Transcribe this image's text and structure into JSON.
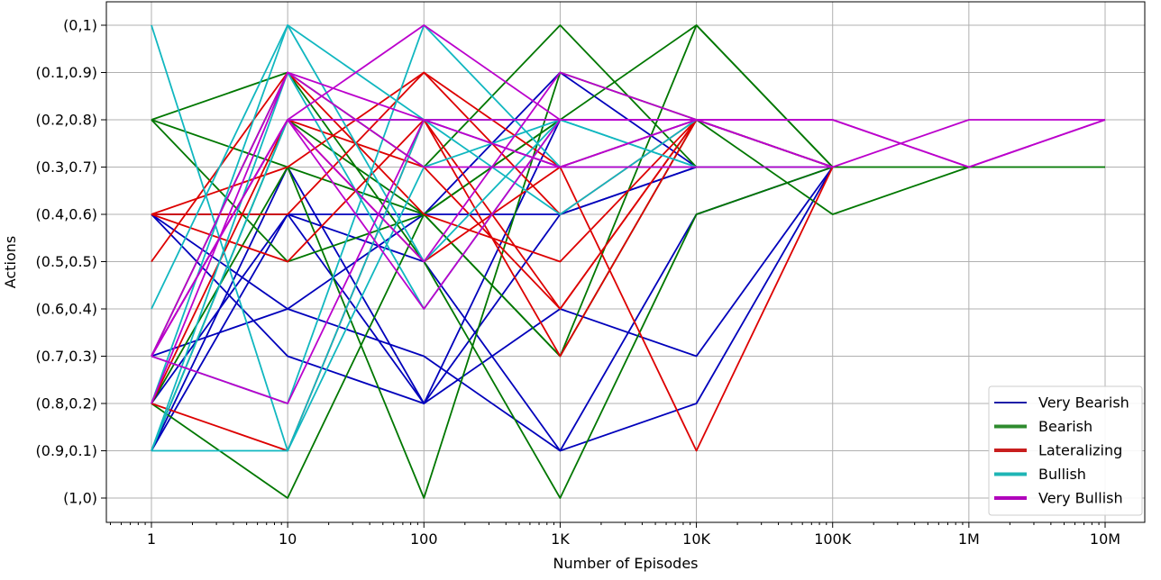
{
  "chart_data": {
    "type": "line",
    "xlabel": "Number of Episodes",
    "ylabel": "Actions",
    "x_scale": "log",
    "x": [
      1,
      10,
      100,
      1000,
      10000,
      100000,
      1000000,
      10000000
    ],
    "x_tick_labels": [
      "1",
      "10",
      "100",
      "1K",
      "10K",
      "100K",
      "1M",
      "10M"
    ],
    "y_tick_labels": [
      "(0,1)",
      "(0.1,0.9)",
      "(0.2,0.8)",
      "(0.3,0.7)",
      "(0.4,0.6)",
      "(0.5,0.5)",
      "(0.6,0.4)",
      "(0.7,0.3)",
      "(0.8,0.2)",
      "(0.9,0.1)",
      "(1,0)"
    ],
    "y_note": "y values are the index into y_tick_labels (0 = (0,1) at top, 10 = (1,0) at bottom)",
    "grid": true,
    "legend_position": "bottom-right",
    "series": [
      {
        "name": "Very Bearish",
        "color": "#0000bb",
        "legend_color": "#1f1fa8",
        "runs": [
          [
            4,
            4,
            4,
            4,
            3
          ],
          [
            4,
            6,
            7,
            9,
            8,
            3
          ],
          [
            7,
            6,
            4,
            1,
            3,
            3
          ],
          [
            9,
            3,
            8,
            4,
            3
          ],
          [
            4,
            7,
            8,
            6,
            7,
            3
          ],
          [
            9,
            4,
            5,
            9,
            4,
            3
          ],
          [
            8,
            4,
            8,
            2,
            2,
            2
          ]
        ]
      },
      {
        "name": "Bearish",
        "color": "#007700",
        "legend_color": "#2e8b2e",
        "runs": [
          [
            2,
            1,
            3,
            0,
            3,
            3,
            3,
            3
          ],
          [
            2,
            3,
            4,
            7,
            2,
            4,
            3
          ],
          [
            7,
            1,
            5,
            10,
            4,
            3
          ],
          [
            8,
            10,
            4,
            2,
            0,
            3
          ],
          [
            9,
            2,
            4,
            7,
            0,
            3
          ],
          [
            2,
            5,
            4,
            2,
            2,
            3
          ],
          [
            8,
            3,
            10,
            1,
            2,
            3
          ]
        ]
      },
      {
        "name": "Lateralizing",
        "color": "#dd0000",
        "legend_color": "#c81e1e",
        "runs": [
          [
            4,
            3,
            1,
            4,
            2,
            3
          ],
          [
            5,
            1,
            4,
            5,
            2,
            2
          ],
          [
            8,
            9,
            2,
            6,
            2,
            3
          ],
          [
            4,
            4,
            1,
            3,
            9,
            3
          ],
          [
            8,
            2,
            3,
            6,
            2,
            2
          ],
          [
            4,
            5,
            2,
            7,
            2,
            3
          ],
          [
            7,
            2,
            5,
            3,
            2,
            2
          ]
        ]
      },
      {
        "name": "Bullish",
        "color": "#11b7c0",
        "legend_color": "#1fb5b5",
        "runs": [
          [
            0,
            9,
            3,
            2,
            3,
            3
          ],
          [
            6,
            0,
            2,
            4,
            2,
            3
          ],
          [
            9,
            9,
            2,
            3,
            3,
            3
          ],
          [
            8,
            0,
            5,
            2,
            2,
            2
          ],
          [
            9,
            1,
            6,
            2,
            3
          ],
          [
            7,
            8,
            0,
            3,
            2,
            2
          ],
          [
            9,
            2,
            2,
            2,
            2,
            2
          ]
        ]
      },
      {
        "name": "Very Bullish",
        "color": "#bb00cc",
        "legend_color": "#b000bb",
        "runs": [
          [
            7,
            1,
            2,
            3,
            3,
            3,
            2,
            2
          ],
          [
            7,
            2,
            5,
            1,
            2,
            3
          ],
          [
            7,
            8,
            2,
            3,
            2,
            2,
            3,
            2
          ],
          [
            7,
            2,
            6,
            2,
            2,
            2
          ],
          [
            7,
            2,
            0,
            2,
            2,
            3
          ],
          [
            8,
            1,
            3,
            3,
            2,
            2,
            3,
            2
          ],
          [
            7,
            2,
            2,
            2,
            2,
            2
          ]
        ]
      }
    ]
  }
}
